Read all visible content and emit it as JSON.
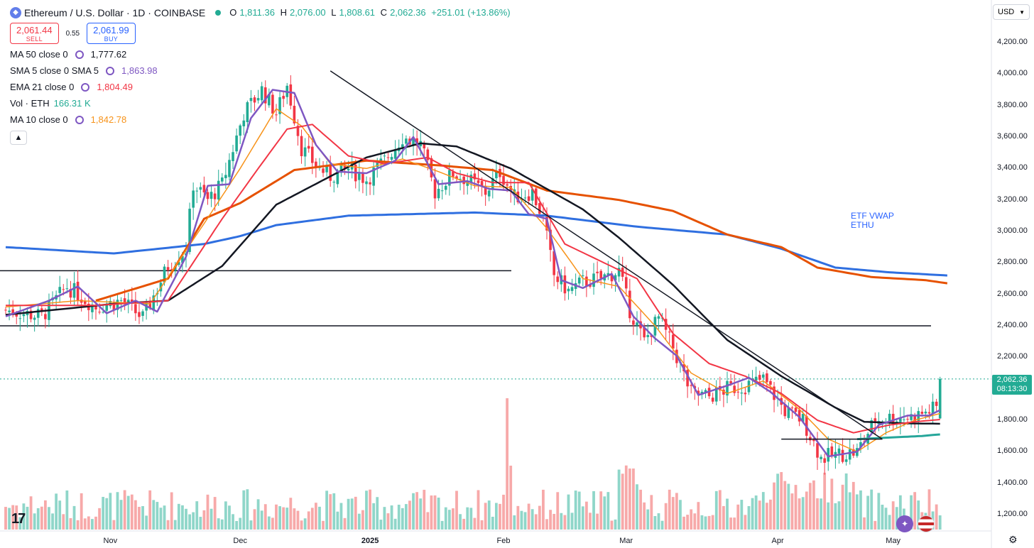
{
  "symbol": {
    "title": "Ethereum / U.S. Dollar · 1D · COINBASE",
    "open_label": "O",
    "open": "1,811.36",
    "high_label": "H",
    "high": "2,076.00",
    "low_label": "L",
    "low": "1,808.61",
    "close_label": "C",
    "close": "2,062.36",
    "change": "+251.01 (+13.86%)"
  },
  "trade": {
    "sell_price": "2,061.44",
    "sell_label": "SELL",
    "spread": "0.55",
    "buy_price": "2,061.99",
    "buy_label": "BUY"
  },
  "indicators": [
    {
      "label": "MA 50 close 0",
      "value": "1,777.62",
      "color": "#131722"
    },
    {
      "label": "SMA 5 close 0 SMA 5",
      "value": "1,863.98",
      "color": "#7e57c2"
    },
    {
      "label": "EMA 21 close 0",
      "value": "1,804.49",
      "color": "#f23645"
    },
    {
      "label": "Vol · ETH",
      "value": "166.31 K",
      "color": "#22ab94"
    },
    {
      "label": "MA 10 close 0",
      "value": "1,842.78",
      "color": "#f7931a"
    }
  ],
  "collapse_icon": "chevron-up-icon",
  "currency": "USD",
  "current_price": "2,062.36",
  "countdown": "08:13:30",
  "annotation": {
    "line1": "ETF VWAP",
    "line2": "ETHU"
  },
  "colors": {
    "up": "#22ab94",
    "down": "#f23645",
    "vol_up": "#8fd6c9",
    "vol_down": "#f7a9a9",
    "ma50": "#131722",
    "sma5": "#7e57c2",
    "ema21": "#f23645",
    "ma10": "#f7931a",
    "vwap_orange": "#e65100",
    "vwap_blue": "#2f6fe0",
    "green_ma": "#26a69a"
  },
  "chart_data": {
    "type": "candlestick",
    "yticks": [
      "4,200.00",
      "4,000.00",
      "3,800.00",
      "3,600.00",
      "3,400.00",
      "3,200.00",
      "3,000.00",
      "2,800.00",
      "2,600.00",
      "2,400.00",
      "2,200.00",
      "2,000.00",
      "1,800.00",
      "1,600.00",
      "1,400.00",
      "1,200.00"
    ],
    "ylim": [
      1150,
      4290
    ],
    "xticks": [
      "Nov",
      "Dec",
      "2025",
      "Feb",
      "Mar",
      "Apr",
      "May"
    ],
    "support_levels": [
      2750,
      2400
    ],
    "price_path": [
      [
        0,
        2500
      ],
      [
        10,
        2460
      ],
      [
        17,
        2650
      ],
      [
        25,
        2520
      ],
      [
        32,
        2560
      ],
      [
        38,
        2450
      ],
      [
        45,
        2780
      ],
      [
        50,
        2890
      ],
      [
        52,
        3300
      ],
      [
        56,
        3200
      ],
      [
        60,
        3300
      ],
      [
        66,
        3750
      ],
      [
        71,
        3900
      ],
      [
        75,
        3750
      ],
      [
        78,
        3930
      ],
      [
        82,
        3530
      ],
      [
        86,
        3420
      ],
      [
        90,
        3350
      ],
      [
        95,
        3400
      ],
      [
        100,
        3330
      ],
      [
        105,
        3450
      ],
      [
        110,
        3600
      ],
      [
        115,
        3550
      ],
      [
        119,
        3250
      ],
      [
        124,
        3370
      ],
      [
        128,
        3330
      ],
      [
        133,
        3250
      ],
      [
        137,
        3380
      ],
      [
        141,
        3220
      ],
      [
        146,
        3250
      ],
      [
        149,
        3080
      ],
      [
        152,
        2720
      ],
      [
        156,
        2620
      ],
      [
        160,
        2680
      ],
      [
        165,
        2700
      ],
      [
        170,
        2750
      ],
      [
        173,
        2500
      ],
      [
        177,
        2300
      ],
      [
        181,
        2450
      ],
      [
        185,
        2260
      ],
      [
        190,
        1970
      ],
      [
        195,
        1950
      ],
      [
        200,
        2000
      ],
      [
        205,
        2020
      ],
      [
        210,
        2060
      ],
      [
        216,
        1860
      ],
      [
        221,
        1800
      ],
      [
        226,
        1560
      ],
      [
        230,
        1580
      ],
      [
        236,
        1600
      ],
      [
        241,
        1800
      ],
      [
        246,
        1820
      ],
      [
        251,
        1820
      ],
      [
        256,
        1860
      ],
      [
        258,
        1880
      ],
      [
        259,
        2062.36
      ]
    ],
    "ma50": [
      [
        0,
        2470
      ],
      [
        30,
        2540
      ],
      [
        45,
        2560
      ],
      [
        60,
        2780
      ],
      [
        75,
        3170
      ],
      [
        100,
        3470
      ],
      [
        115,
        3560
      ],
      [
        125,
        3540
      ],
      [
        140,
        3400
      ],
      [
        150,
        3270
      ],
      [
        160,
        3140
      ],
      [
        170,
        2960
      ],
      [
        185,
        2660
      ],
      [
        200,
        2310
      ],
      [
        215,
        2080
      ],
      [
        230,
        1880
      ],
      [
        238,
        1790
      ],
      [
        250,
        1780
      ],
      [
        259,
        1777.62
      ]
    ],
    "ema21": [
      [
        0,
        2530
      ],
      [
        25,
        2530
      ],
      [
        45,
        2560
      ],
      [
        60,
        3080
      ],
      [
        70,
        3400
      ],
      [
        78,
        3650
      ],
      [
        85,
        3680
      ],
      [
        95,
        3480
      ],
      [
        105,
        3430
      ],
      [
        117,
        3470
      ],
      [
        125,
        3370
      ],
      [
        135,
        3310
      ],
      [
        145,
        3310
      ],
      [
        155,
        2920
      ],
      [
        165,
        2810
      ],
      [
        175,
        2700
      ],
      [
        185,
        2350
      ],
      [
        195,
        2160
      ],
      [
        205,
        2080
      ],
      [
        215,
        1970
      ],
      [
        225,
        1800
      ],
      [
        235,
        1720
      ],
      [
        245,
        1770
      ],
      [
        252,
        1790
      ],
      [
        259,
        1804.49
      ]
    ],
    "ma10": [
      [
        0,
        2520
      ],
      [
        20,
        2560
      ],
      [
        40,
        2540
      ],
      [
        55,
        3050
      ],
      [
        65,
        3400
      ],
      [
        75,
        3780
      ],
      [
        82,
        3670
      ],
      [
        90,
        3430
      ],
      [
        100,
        3400
      ],
      [
        110,
        3460
      ],
      [
        120,
        3380
      ],
      [
        130,
        3290
      ],
      [
        140,
        3280
      ],
      [
        150,
        3020
      ],
      [
        160,
        2700
      ],
      [
        170,
        2650
      ],
      [
        180,
        2400
      ],
      [
        190,
        2100
      ],
      [
        200,
        1970
      ],
      [
        210,
        2050
      ],
      [
        220,
        1870
      ],
      [
        228,
        1680
      ],
      [
        236,
        1600
      ],
      [
        244,
        1720
      ],
      [
        252,
        1800
      ],
      [
        259,
        1842.78
      ]
    ],
    "sma5": [
      [
        0,
        2460
      ],
      [
        12,
        2560
      ],
      [
        20,
        2650
      ],
      [
        28,
        2480
      ],
      [
        36,
        2560
      ],
      [
        42,
        2490
      ],
      [
        50,
        2840
      ],
      [
        56,
        3290
      ],
      [
        62,
        3300
      ],
      [
        68,
        3720
      ],
      [
        74,
        3900
      ],
      [
        80,
        3880
      ],
      [
        86,
        3550
      ],
      [
        92,
        3380
      ],
      [
        100,
        3370
      ],
      [
        108,
        3450
      ],
      [
        113,
        3600
      ],
      [
        120,
        3300
      ],
      [
        128,
        3320
      ],
      [
        134,
        3270
      ],
      [
        140,
        3260
      ],
      [
        145,
        3110
      ],
      [
        150,
        3080
      ],
      [
        154,
        2690
      ],
      [
        160,
        2640
      ],
      [
        168,
        2730
      ],
      [
        174,
        2460
      ],
      [
        180,
        2320
      ],
      [
        186,
        2210
      ],
      [
        192,
        1960
      ],
      [
        200,
        2020
      ],
      [
        206,
        2070
      ],
      [
        212,
        1980
      ],
      [
        220,
        1820
      ],
      [
        228,
        1570
      ],
      [
        236,
        1600
      ],
      [
        242,
        1770
      ],
      [
        250,
        1830
      ],
      [
        256,
        1830
      ],
      [
        259,
        1863.98
      ]
    ],
    "vwap_orange": [
      [
        25,
        2560
      ],
      [
        45,
        2700
      ],
      [
        55,
        3080
      ],
      [
        65,
        3180
      ],
      [
        80,
        3390
      ],
      [
        100,
        3450
      ],
      [
        120,
        3420
      ],
      [
        135,
        3390
      ],
      [
        150,
        3260
      ],
      [
        170,
        3200
      ],
      [
        185,
        3130
      ],
      [
        200,
        2980
      ],
      [
        215,
        2900
      ],
      [
        225,
        2770
      ],
      [
        240,
        2710
      ],
      [
        255,
        2690
      ],
      [
        261,
        2670
      ]
    ],
    "vwap_blue": [
      [
        0,
        2900
      ],
      [
        30,
        2860
      ],
      [
        55,
        2920
      ],
      [
        65,
        2970
      ],
      [
        75,
        3040
      ],
      [
        95,
        3100
      ],
      [
        130,
        3120
      ],
      [
        150,
        3100
      ],
      [
        175,
        3030
      ],
      [
        200,
        2980
      ],
      [
        215,
        2890
      ],
      [
        230,
        2770
      ],
      [
        245,
        2740
      ],
      [
        261,
        2720
      ]
    ],
    "green_ma": [
      [
        236,
        1680
      ],
      [
        245,
        1690
      ],
      [
        254,
        1700
      ],
      [
        259,
        1710
      ]
    ],
    "trendline": [
      [
        90,
        4020
      ],
      [
        243,
        1680
      ]
    ],
    "short_support": [
      [
        215,
        1680
      ],
      [
        243,
        1680
      ]
    ]
  }
}
